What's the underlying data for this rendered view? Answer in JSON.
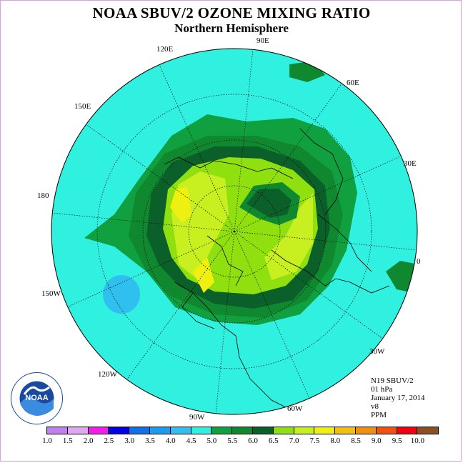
{
  "title": "NOAA SBUV/2 OZONE MIXING RATIO",
  "subtitle": "Northern Hemisphere",
  "longitude_labels": {
    "e90": "90E",
    "e60": "60E",
    "e30": "30E",
    "zero": "0",
    "w30": "30W",
    "w60": "60W",
    "w90": "90W",
    "w120": "120W",
    "w150": "150W",
    "d180": "180",
    "e150": "150E",
    "e120": "120E"
  },
  "info": {
    "instrument": "N19 SBUV/2",
    "pressure_level": "01 hPa",
    "date": "January 17, 2014",
    "version": "v8",
    "units": "PPM"
  },
  "logo_text": "NOAA",
  "legend": {
    "ticks": [
      "1.0",
      "1.5",
      "2.0",
      "2.5",
      "3.0",
      "3.5",
      "4.0",
      "4.5",
      "5.0",
      "5.5",
      "6.0",
      "6.5",
      "7.0",
      "7.5",
      "8.0",
      "8.5",
      "9.0",
      "9.5",
      "10.0"
    ],
    "colors": [
      "#c080f0",
      "#e0a8f0",
      "#f020e8",
      "#0000e0",
      "#1070e8",
      "#1c9cf0",
      "#30c0f0",
      "#30f0e0",
      "#10a040",
      "#108830",
      "#0a6028",
      "#90e010",
      "#c8f020",
      "#f0f010",
      "#f0c010",
      "#f09010",
      "#f05010",
      "#f00010",
      "#8a5020"
    ]
  },
  "map_colors": {
    "background_band": "#30f0e0",
    "band_5": "#10a040",
    "band_55": "#108830",
    "band_6": "#0a6028",
    "band_65": "#90e010",
    "band_7": "#c8f020",
    "band_75": "#f0f010",
    "band_4": "#30c0f0"
  }
}
